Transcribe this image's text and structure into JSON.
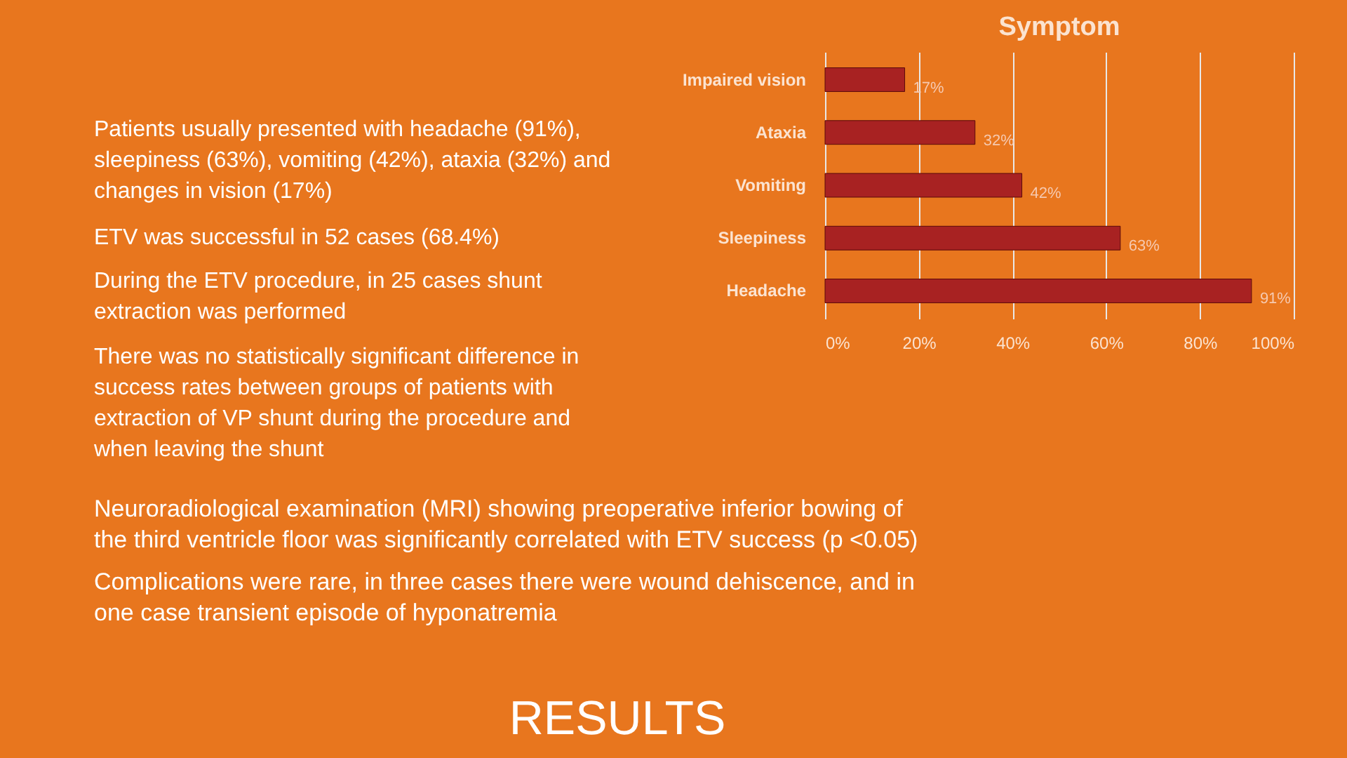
{
  "chart_data": {
    "type": "bar",
    "orientation": "horizontal",
    "title": "Symptom",
    "categories": [
      "Impaired vision",
      "Ataxia",
      "Vomiting",
      "Sleepiness",
      "Headache"
    ],
    "series": [
      {
        "color": "#a82222",
        "values": [
          17,
          32,
          42,
          63,
          91
        ],
        "value_labels": [
          "17%",
          "32%",
          "42%",
          "63%",
          "91%"
        ]
      }
    ],
    "xlim": [
      0,
      100
    ],
    "xticks": [
      {
        "value": 0,
        "label": "0%"
      },
      {
        "value": 20,
        "label": "20%"
      },
      {
        "value": 40,
        "label": "40%"
      },
      {
        "value": 60,
        "label": "60%"
      },
      {
        "value": 80,
        "label": "80%"
      },
      {
        "value": 100,
        "label": "100%"
      }
    ],
    "grid": "x",
    "annotations": [
      "Patients usually presented with headache (91%),\nsleepiness (63%), vomiting (42%), ataxia (32%) and\nchanges in vision (17%)",
      "ETV was successful in 52 cases (68.4%)",
      "During the ETV procedure, in 25 cases shunt\nextraction was performed",
      "There was no statistically significant difference in\nsuccess rates between groups of patients with\nextraction of VP shunt during the procedure and\nwhen leaving the shunt",
      "Neuroradiological examination (MRI) showing preoperative inferior bowing of\nthe third ventricle floor was significantly correlated with ETV success (p <0.05)",
      "Complications were rare, in three cases there were wound dehiscence, and in\none case transient episode of hyponatremia",
      "RESULTS"
    ]
  }
}
